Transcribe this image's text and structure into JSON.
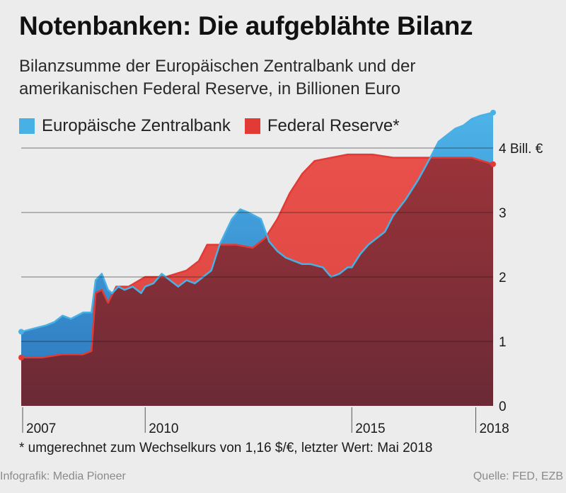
{
  "header": {
    "title": "Notenbanken: Die aufgeblähte Bilanz",
    "subtitle": "Bilanzsumme der Europäischen Zentralbank und der amerikanischen Federal Reserve, in Billionen Euro"
  },
  "legend": {
    "ecb": "Europäische Zentralbank",
    "fed": "Federal Reserve*"
  },
  "colors": {
    "ecb_line": "#47b1e6",
    "ecb_fill": "#4a9fd8",
    "ecb_fill_dark": "#1e5e9c",
    "fed_line": "#e23a35",
    "fed_fill": "#e04a44",
    "fed_fill_dark": "#6e2a35",
    "background": "#ececec"
  },
  "chart_data": {
    "type": "area",
    "xlabel": "",
    "ylabel": "",
    "x_ticks": [
      "2007",
      "2010",
      "2015",
      "2018"
    ],
    "y_ticks": [
      "0",
      "1",
      "2",
      "3",
      "4 Bill. €"
    ],
    "ylim": [
      0,
      4.5
    ],
    "xlim": [
      2007.0,
      2018.42
    ],
    "grid": true,
    "series": [
      {
        "name": "Europäische Zentralbank",
        "points": [
          [
            2007.0,
            1.15
          ],
          [
            2007.3,
            1.2
          ],
          [
            2007.6,
            1.25
          ],
          [
            2007.8,
            1.3
          ],
          [
            2008.0,
            1.4
          ],
          [
            2008.2,
            1.35
          ],
          [
            2008.5,
            1.45
          ],
          [
            2008.7,
            1.45
          ],
          [
            2008.8,
            1.95
          ],
          [
            2008.95,
            2.05
          ],
          [
            2009.1,
            1.8
          ],
          [
            2009.2,
            1.75
          ],
          [
            2009.35,
            1.85
          ],
          [
            2009.5,
            1.8
          ],
          [
            2009.7,
            1.85
          ],
          [
            2009.9,
            1.75
          ],
          [
            2010.0,
            1.85
          ],
          [
            2010.2,
            1.9
          ],
          [
            2010.4,
            2.05
          ],
          [
            2010.6,
            1.95
          ],
          [
            2010.8,
            1.85
          ],
          [
            2011.0,
            1.95
          ],
          [
            2011.2,
            1.9
          ],
          [
            2011.4,
            2.0
          ],
          [
            2011.6,
            2.1
          ],
          [
            2011.8,
            2.5
          ],
          [
            2011.95,
            2.7
          ],
          [
            2012.1,
            2.9
          ],
          [
            2012.3,
            3.05
          ],
          [
            2012.5,
            3.0
          ],
          [
            2012.8,
            2.9
          ],
          [
            2013.0,
            2.55
          ],
          [
            2013.2,
            2.4
          ],
          [
            2013.4,
            2.3
          ],
          [
            2013.6,
            2.25
          ],
          [
            2013.8,
            2.2
          ],
          [
            2014.0,
            2.2
          ],
          [
            2014.3,
            2.15
          ],
          [
            2014.5,
            2.0
          ],
          [
            2014.7,
            2.05
          ],
          [
            2014.9,
            2.15
          ],
          [
            2015.0,
            2.15
          ],
          [
            2015.2,
            2.35
          ],
          [
            2015.4,
            2.5
          ],
          [
            2015.6,
            2.6
          ],
          [
            2015.8,
            2.7
          ],
          [
            2016.0,
            2.95
          ],
          [
            2016.3,
            3.2
          ],
          [
            2016.6,
            3.5
          ],
          [
            2016.9,
            3.85
          ],
          [
            2017.1,
            4.1
          ],
          [
            2017.3,
            4.2
          ],
          [
            2017.5,
            4.3
          ],
          [
            2017.7,
            4.35
          ],
          [
            2017.9,
            4.45
          ],
          [
            2018.1,
            4.5
          ],
          [
            2018.42,
            4.55
          ]
        ]
      },
      {
        "name": "Federal Reserve*",
        "points": [
          [
            2007.0,
            0.75
          ],
          [
            2007.5,
            0.75
          ],
          [
            2008.0,
            0.8
          ],
          [
            2008.5,
            0.8
          ],
          [
            2008.7,
            0.85
          ],
          [
            2008.8,
            1.75
          ],
          [
            2008.95,
            1.8
          ],
          [
            2009.1,
            1.6
          ],
          [
            2009.3,
            1.85
          ],
          [
            2009.6,
            1.85
          ],
          [
            2010.0,
            2.0
          ],
          [
            2010.5,
            2.0
          ],
          [
            2011.0,
            2.1
          ],
          [
            2011.3,
            2.25
          ],
          [
            2011.5,
            2.5
          ],
          [
            2011.8,
            2.5
          ],
          [
            2012.2,
            2.5
          ],
          [
            2012.6,
            2.45
          ],
          [
            2012.9,
            2.6
          ],
          [
            2013.2,
            2.9
          ],
          [
            2013.5,
            3.3
          ],
          [
            2013.8,
            3.6
          ],
          [
            2014.1,
            3.8
          ],
          [
            2014.5,
            3.85
          ],
          [
            2014.9,
            3.9
          ],
          [
            2015.5,
            3.9
          ],
          [
            2016.0,
            3.85
          ],
          [
            2016.5,
            3.85
          ],
          [
            2017.0,
            3.85
          ],
          [
            2017.5,
            3.85
          ],
          [
            2017.9,
            3.85
          ],
          [
            2018.42,
            3.75
          ]
        ]
      }
    ]
  },
  "footnote": "* umgerechnet zum Wechselkurs von 1,16 $/€, letzter Wert: Mai 2018",
  "footer": {
    "credit": "Infografik: Media Pioneer",
    "source": "Quelle: FED, EZB"
  }
}
